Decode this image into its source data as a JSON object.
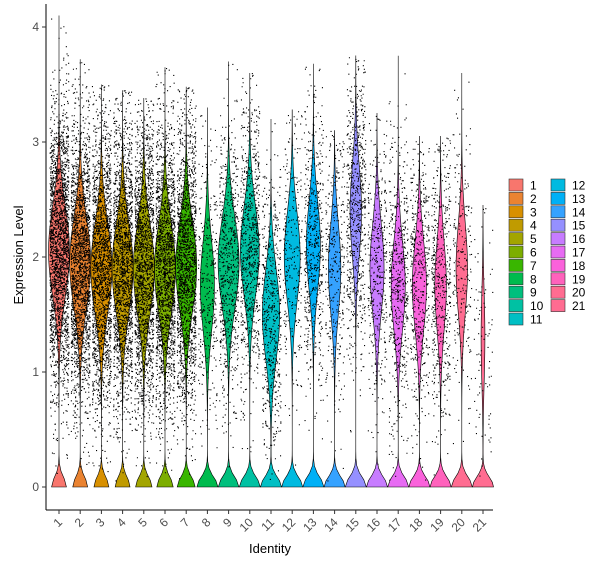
{
  "chart_data": {
    "type": "violin",
    "xlabel": "Identity",
    "ylabel": "Expression Level",
    "ylim": [
      -0.2,
      4.2
    ],
    "yticks": [
      0,
      1,
      2,
      3,
      4
    ],
    "grid": false,
    "legend_position": "right",
    "categories": [
      "1",
      "2",
      "3",
      "4",
      "5",
      "6",
      "7",
      "8",
      "9",
      "10",
      "11",
      "12",
      "13",
      "14",
      "15",
      "16",
      "17",
      "18",
      "19",
      "20",
      "21"
    ],
    "colors": [
      "#F8766D",
      "#EA8331",
      "#D89000",
      "#C09B00",
      "#A3A500",
      "#7CAE00",
      "#39B600",
      "#00BB4E",
      "#00BF7D",
      "#00C1A3",
      "#00BFC4",
      "#00BAE0",
      "#00B0F6",
      "#35A2FF",
      "#9590FF",
      "#C77CFF",
      "#E76BF3",
      "#FA62DB",
      "#FF62BC",
      "#FF6C91",
      "#FF6C91"
    ],
    "max_values": [
      4.1,
      3.72,
      3.5,
      3.45,
      3.38,
      3.65,
      3.48,
      3.3,
      3.7,
      3.6,
      3.2,
      3.28,
      3.68,
      3.1,
      3.75,
      3.25,
      3.75,
      3.05,
      3.05,
      3.6,
      2.45
    ],
    "upper_median": [
      2.05,
      1.95,
      1.9,
      1.9,
      1.9,
      1.9,
      1.92,
      1.75,
      1.95,
      2.05,
      1.5,
      2.0,
      2.1,
      1.9,
      2.4,
      1.9,
      1.75,
      1.75,
      1.75,
      1.9,
      1.3
    ],
    "zero_fraction": [
      0.28,
      0.28,
      0.28,
      0.28,
      0.3,
      0.3,
      0.32,
      0.45,
      0.35,
      0.38,
      0.4,
      0.42,
      0.45,
      0.48,
      0.5,
      0.45,
      0.45,
      0.45,
      0.5,
      0.5,
      0.75
    ],
    "point_density": [
      1,
      0.9,
      0.85,
      0.85,
      0.85,
      0.85,
      0.8,
      0.15,
      0.3,
      0.35,
      0.25,
      0.12,
      0.25,
      0.15,
      0.3,
      0.18,
      0.25,
      0.22,
      0.22,
      0.1,
      0.04
    ]
  }
}
